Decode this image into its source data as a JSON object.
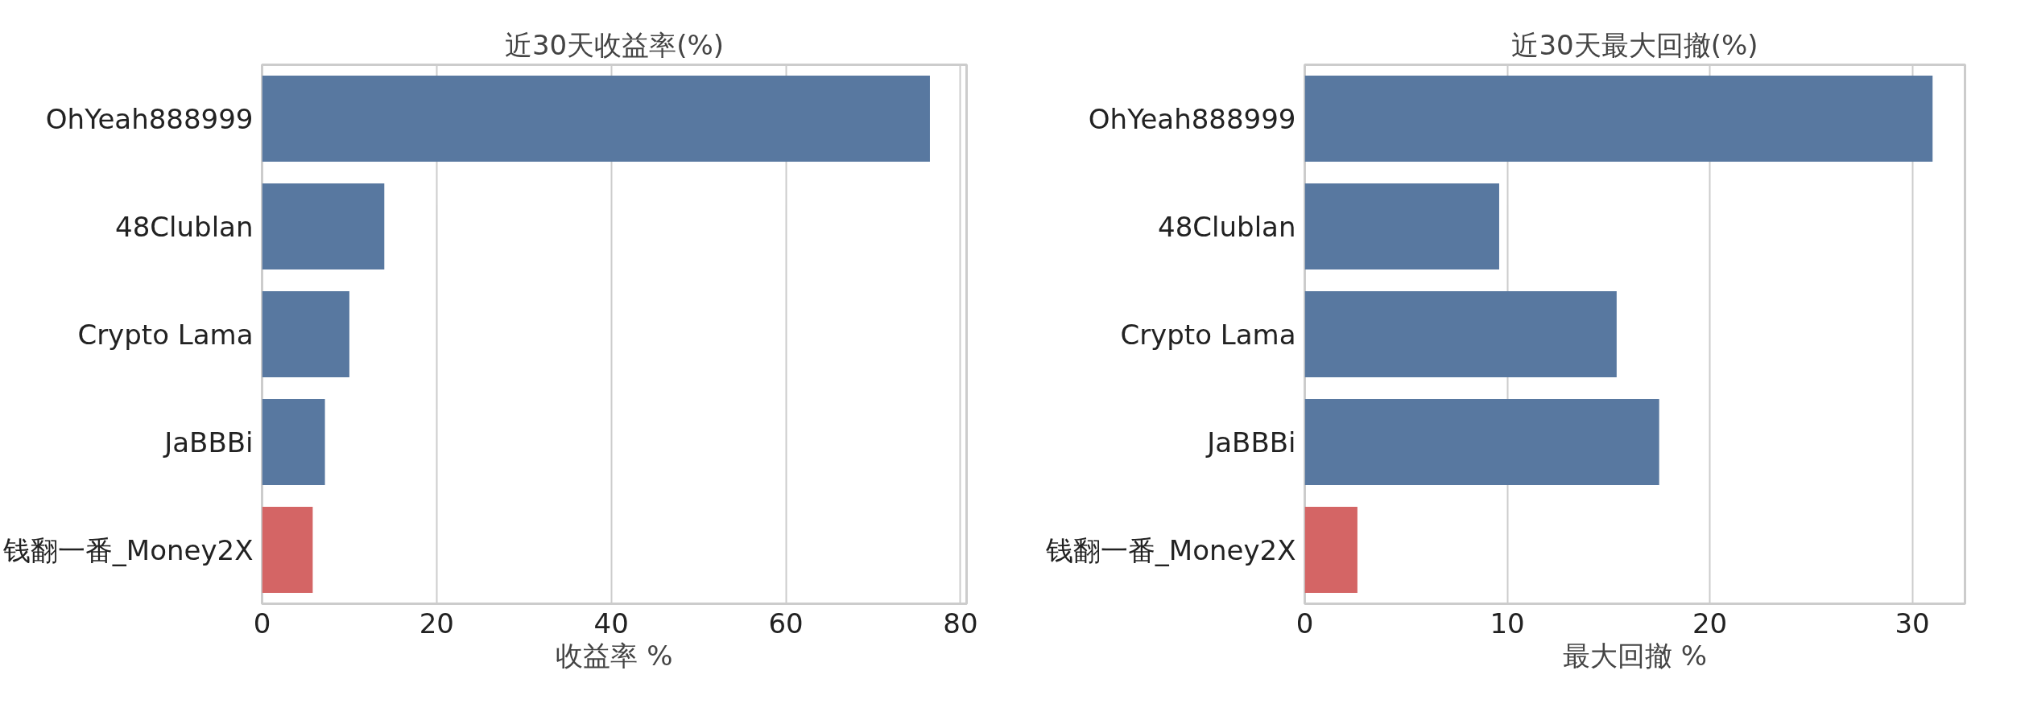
{
  "chart_data": [
    {
      "type": "bar",
      "orientation": "horizontal",
      "title": "近30天收益率(%)",
      "xlabel": "收益率 %",
      "categories": [
        "OhYeah888999",
        "48Clublan",
        "Crypto Lama",
        "JaBBBi",
        "钱翻一番_Money2X"
      ],
      "values": [
        76.5,
        14,
        10,
        7.2,
        5.8
      ],
      "colors": [
        "#5878a0",
        "#5878a0",
        "#5878a0",
        "#5878a0",
        "#d46565"
      ],
      "xlim": [
        0,
        80.7
      ],
      "xticks": [
        0,
        20,
        40,
        60,
        80
      ],
      "grid": "x"
    },
    {
      "type": "bar",
      "orientation": "horizontal",
      "title": "近30天最大回撤(%)",
      "xlabel": "最大回撤 %",
      "categories": [
        "OhYeah888999",
        "48Clublan",
        "Crypto Lama",
        "JaBBBi",
        "钱翻一番_Money2X"
      ],
      "values": [
        31,
        9.6,
        15.4,
        17.5,
        2.6
      ],
      "colors": [
        "#5878a0",
        "#5878a0",
        "#5878a0",
        "#5878a0",
        "#d46565"
      ],
      "xlim": [
        0,
        32.6
      ],
      "xticks": [
        0,
        10,
        20,
        30
      ],
      "grid": "x"
    }
  ]
}
